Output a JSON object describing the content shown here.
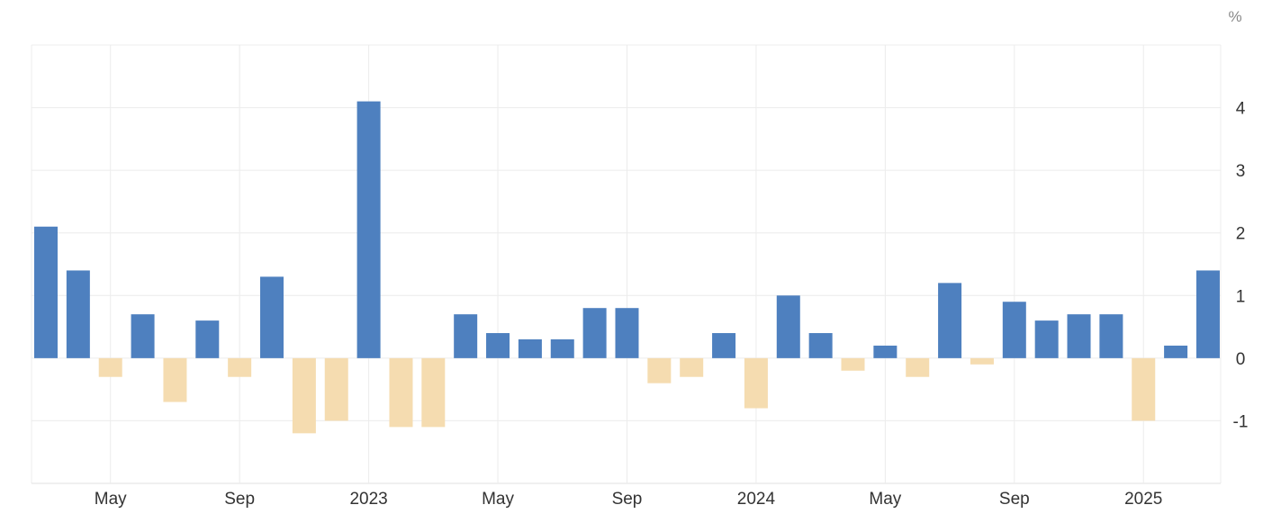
{
  "chart_data": {
    "type": "bar",
    "title": "",
    "unit_label": "%",
    "xlabel": "",
    "ylabel": "%",
    "ylim": [
      -2,
      5
    ],
    "y_ticks": [
      4,
      3,
      2,
      1,
      0,
      -1
    ],
    "grid": true,
    "colors": {
      "positive": "#4e80bf",
      "negative": "#f5dcb0",
      "grid": "#ececec",
      "text": "#333333",
      "unit": "#888888"
    },
    "x_tick_labels": [
      {
        "label": "May",
        "index": 2
      },
      {
        "label": "Sep",
        "index": 6
      },
      {
        "label": "2023",
        "index": 10
      },
      {
        "label": "May",
        "index": 14
      },
      {
        "label": "Sep",
        "index": 18
      },
      {
        "label": "2024",
        "index": 22
      },
      {
        "label": "May",
        "index": 26
      },
      {
        "label": "Sep",
        "index": 30
      },
      {
        "label": "2025",
        "index": 34
      }
    ],
    "values": [
      2.1,
      1.4,
      -0.3,
      0.7,
      -0.7,
      0.6,
      -0.3,
      1.3,
      -1.2,
      -1.0,
      4.1,
      -1.1,
      -1.1,
      0.7,
      0.4,
      0.3,
      0.3,
      0.8,
      0.8,
      -0.4,
      -0.3,
      0.4,
      -0.8,
      1.0,
      0.4,
      -0.2,
      0.2,
      -0.3,
      1.2,
      -0.1,
      0.9,
      0.6,
      0.7,
      0.7,
      -1.0,
      0.2,
      1.4
    ]
  }
}
